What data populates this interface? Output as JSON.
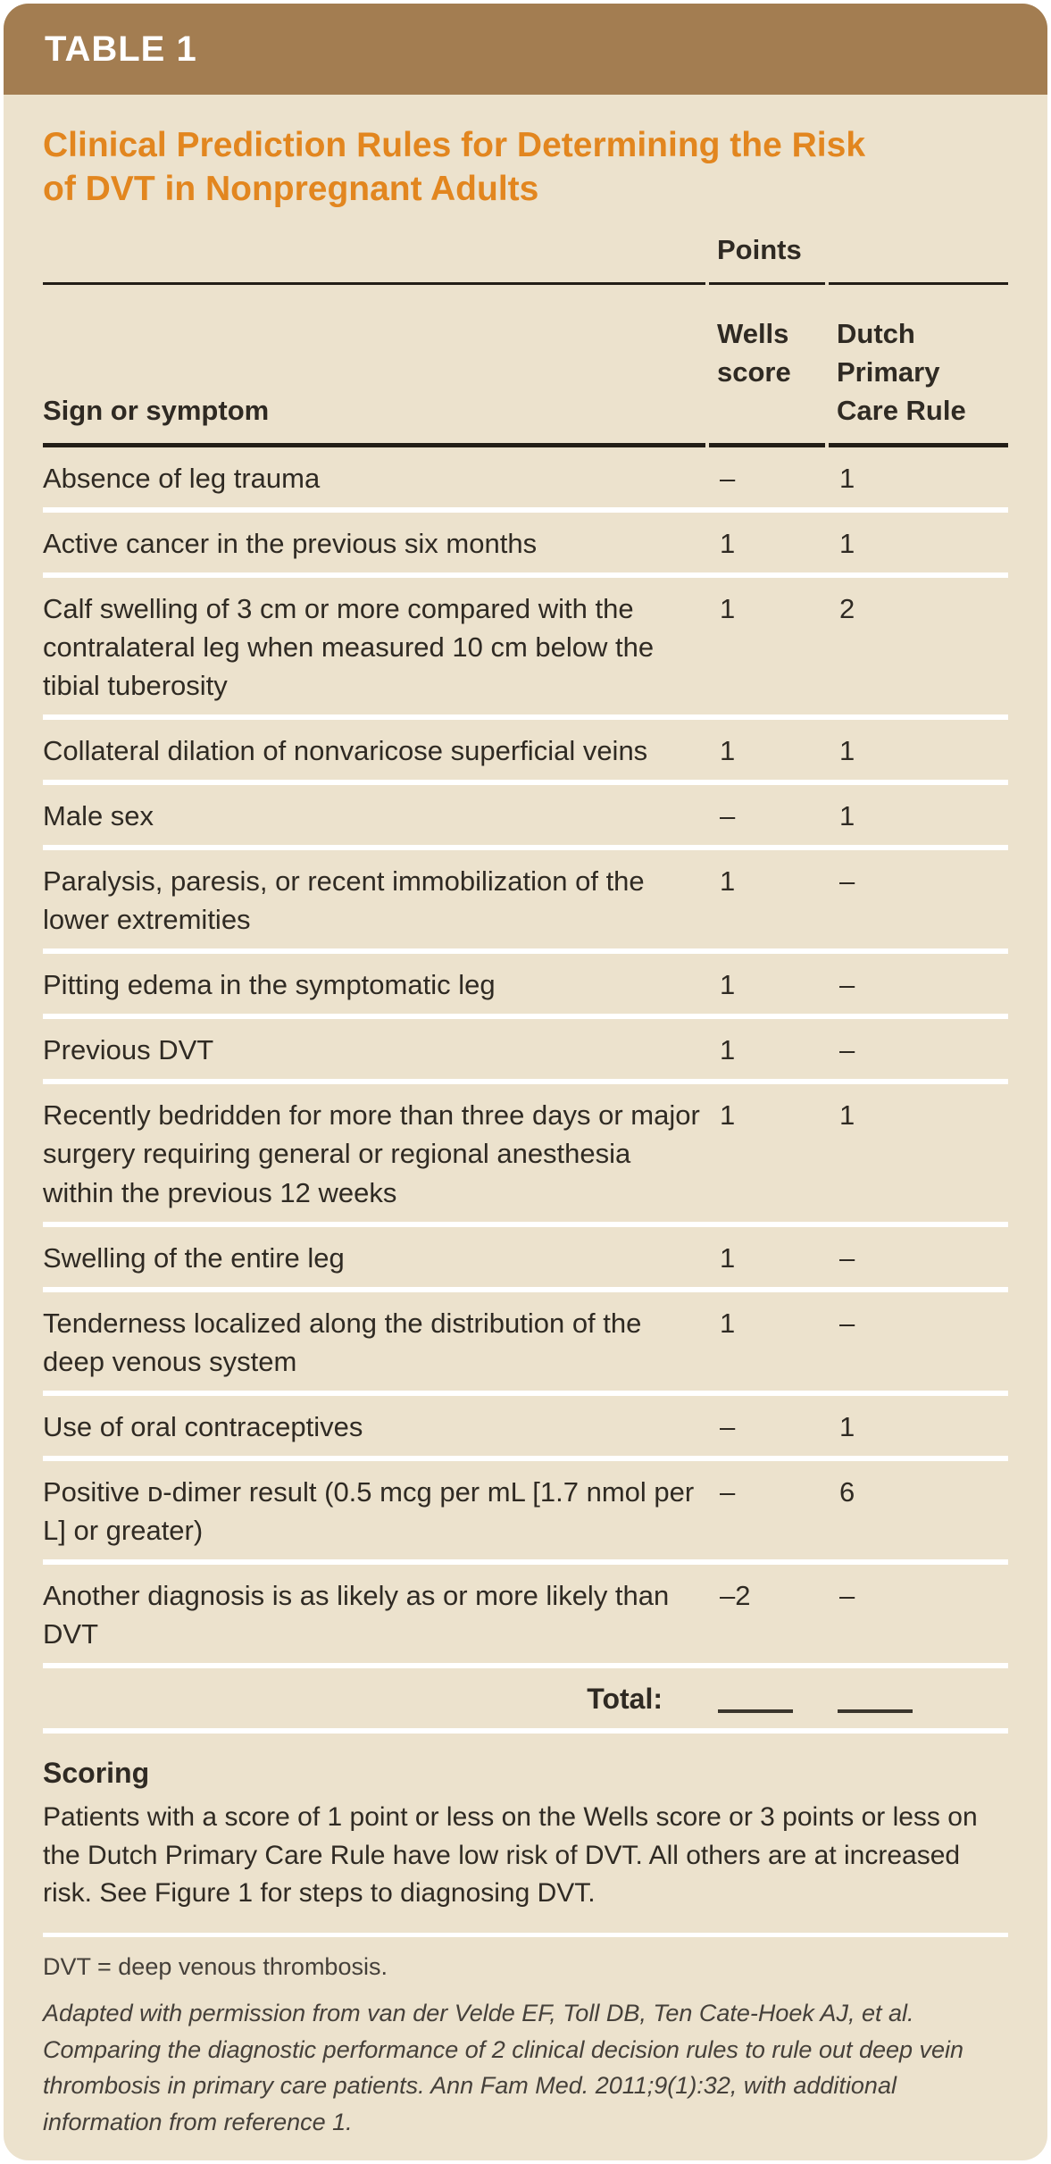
{
  "colors": {
    "header_bar": "#a37d51",
    "title_orange": "#e2861f",
    "card_background": "#ece2cd",
    "body_text": "#2f2a23",
    "header_rule": "#231e17",
    "row_divider": "#ffffff",
    "footnote_text": "#45403a",
    "page_background": "#ffffff"
  },
  "header": {
    "table_label": "TABLE 1"
  },
  "title": {
    "line1": "Clinical Prediction Rules for Determining the Risk",
    "line2": "of DVT in Nonpregnant Adults",
    "full": "Clinical Prediction Rules for Determining the Risk of DVT in Nonpregnant Adults"
  },
  "table": {
    "points_group_header": "Points",
    "columns": [
      "Sign or symptom",
      "Wells score",
      "Dutch Primary Care Rule"
    ],
    "rows": [
      {
        "sign": "Absence of leg trauma",
        "wells": "–",
        "dutch": "1"
      },
      {
        "sign": "Active cancer in the previous six months",
        "wells": "1",
        "dutch": "1"
      },
      {
        "sign": "Calf swelling of 3 cm or more compared with the contralateral leg when measured 10 cm below the tibial tuberosity",
        "wells": "1",
        "dutch": "2"
      },
      {
        "sign": "Collateral dilation of nonvaricose superficial veins",
        "wells": "1",
        "dutch": "1"
      },
      {
        "sign": "Male sex",
        "wells": "–",
        "dutch": "1"
      },
      {
        "sign": "Paralysis, paresis, or recent immobilization of the lower extremities",
        "wells": "1",
        "dutch": "–"
      },
      {
        "sign": "Pitting edema in the symptomatic leg",
        "wells": "1",
        "dutch": "–"
      },
      {
        "sign": "Previous DVT",
        "wells": "1",
        "dutch": "–"
      },
      {
        "sign": "Recently bedridden for more than three days or major surgery requiring general or regional anesthesia within the previous 12 weeks",
        "wells": "1",
        "dutch": "1"
      },
      {
        "sign": "Swelling of the entire leg",
        "wells": "1",
        "dutch": "–"
      },
      {
        "sign": "Tenderness localized along the distribution of the deep venous system",
        "wells": "1",
        "dutch": "–"
      },
      {
        "sign": "Use of oral contraceptives",
        "wells": "–",
        "dutch": "1"
      },
      {
        "sign": "Positive ᴅ-dimer result (0.5 mcg per mL [1.7 nmol per L] or greater)",
        "wells": "–",
        "dutch": "6"
      },
      {
        "sign": "Another diagnosis is as likely as or more likely than DVT",
        "wells": "–2",
        "dutch": "–"
      }
    ],
    "total_label": "Total:"
  },
  "scoring": {
    "heading": "Scoring",
    "body": "Patients with a score of 1 point or less on the Wells score or 3 points or less on the Dutch Primary Care Rule have low risk of DVT. All others are at increased risk. See Figure 1 for steps to diagnosing DVT."
  },
  "footnote": {
    "abbreviations": "DVT = deep venous thrombosis.",
    "citation": "Adapted with permission from van der Velde EF, Toll DB, Ten Cate-Hoek AJ, et al. Comparing the diagnostic performance of 2 clinical decision rules to rule out deep vein thrombosis in primary care patients. Ann Fam Med. 2011;9(1):32, with additional information from reference 1."
  }
}
